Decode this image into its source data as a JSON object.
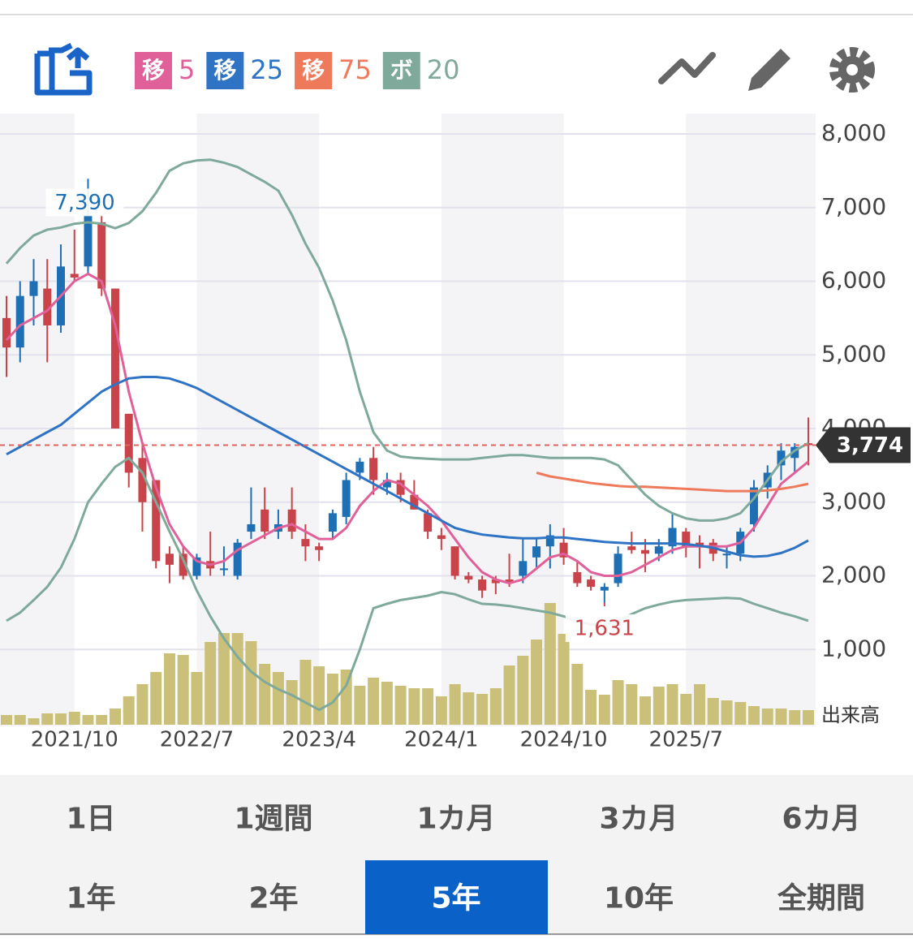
{
  "chart_data": {
    "type": "candlestick",
    "indicators": [
      {
        "badge": "移",
        "period": 5,
        "color": "#e0609a"
      },
      {
        "badge": "移",
        "period": 25,
        "color": "#2f74c4"
      },
      {
        "badge": "移",
        "period": 75,
        "color": "#ee7a5b"
      },
      {
        "badge": "ボ",
        "period": 20,
        "color": "#7fa99b"
      }
    ],
    "categories": [
      null,
      null,
      null,
      null,
      null,
      "2021/10",
      null,
      null,
      null,
      null,
      null,
      null,
      null,
      null,
      "2022/7",
      null,
      null,
      null,
      null,
      null,
      null,
      null,
      null,
      "2023/4",
      null,
      null,
      null,
      null,
      null,
      null,
      null,
      null,
      "2024/1",
      null,
      null,
      null,
      null,
      null,
      null,
      null,
      null,
      "2024/10",
      null,
      null,
      null,
      null,
      null,
      null,
      null,
      null,
      "2025/7",
      null,
      null,
      null,
      null,
      null,
      null,
      null,
      null,
      null
    ],
    "open": [
      5500,
      5100,
      5800,
      5900,
      5400,
      6100,
      6200,
      6800,
      5900,
      4200,
      3600,
      3300,
      2300,
      2300,
      2000,
      2200,
      2100,
      2000,
      2600,
      2900,
      2600,
      2900,
      2500,
      2400,
      2600,
      2800,
      3400,
      3600,
      3200,
      3300,
      3100,
      2850,
      2550,
      2400,
      2000,
      1950,
      1950,
      1950,
      2000,
      2250,
      2400,
      2450,
      2050,
      1950,
      1800,
      1900,
      2400,
      2350,
      2300,
      2400,
      2600,
      2450,
      2450,
      2300,
      2300,
      2700,
      3200,
      3500,
      3600,
      3800
    ],
    "high": [
      5800,
      6000,
      6300,
      6300,
      6500,
      6700,
      7390,
      6900,
      5900,
      4200,
      3800,
      3300,
      2400,
      2400,
      2300,
      2600,
      2400,
      2500,
      3200,
      3200,
      2900,
      3200,
      2700,
      2450,
      2900,
      3400,
      3600,
      3750,
      3400,
      3400,
      3300,
      2900,
      2650,
      2400,
      2050,
      2000,
      2000,
      2300,
      2500,
      2500,
      2700,
      2650,
      2200,
      2000,
      1900,
      2400,
      2600,
      2500,
      2500,
      2850,
      2650,
      2550,
      2500,
      2400,
      2650,
      3300,
      3500,
      3800,
      3800,
      4150
    ],
    "low": [
      4700,
      4900,
      5400,
      4900,
      5300,
      6000,
      6100,
      5800,
      4000,
      3200,
      2600,
      2100,
      1900,
      1950,
      1950,
      2000,
      2000,
      1950,
      2500,
      2500,
      2500,
      2500,
      2200,
      2200,
      2500,
      2700,
      3300,
      3100,
      3100,
      3000,
      2900,
      2500,
      2350,
      1950,
      1900,
      1700,
      1750,
      1850,
      1900,
      2100,
      2100,
      2150,
      1850,
      1800,
      1631,
      1850,
      2300,
      2050,
      2200,
      2300,
      2250,
      2100,
      2200,
      2100,
      2200,
      2600,
      3050,
      3300,
      3400,
      3500
    ],
    "close": [
      5100,
      5800,
      6000,
      5400,
      6200,
      6050,
      6900,
      5900,
      4000,
      3400,
      3000,
      2200,
      2150,
      2000,
      2250,
      2100,
      2100,
      2450,
      2700,
      2600,
      2700,
      2600,
      2400,
      2350,
      2850,
      3300,
      3550,
      3300,
      3300,
      3100,
      2900,
      2600,
      2500,
      2000,
      1950,
      1800,
      1900,
      1900,
      2200,
      2400,
      2550,
      2250,
      1900,
      1850,
      1850,
      2300,
      2350,
      2300,
      2400,
      2650,
      2400,
      2400,
      2300,
      2300,
      2600,
      3200,
      3400,
      3700,
      3750,
      3774
    ],
    "volume": [
      12,
      12,
      8,
      14,
      14,
      16,
      12,
      12,
      20,
      35,
      50,
      65,
      88,
      86,
      65,
      102,
      113,
      113,
      103,
      75,
      65,
      55,
      80,
      72,
      63,
      68,
      48,
      58,
      53,
      48,
      45,
      45,
      35,
      50,
      40,
      38,
      45,
      73,
      85,
      105,
      150,
      112,
      75,
      43,
      37,
      55,
      50,
      35,
      47,
      50,
      38,
      50,
      33,
      30,
      28,
      23,
      20,
      20,
      18,
      18
    ],
    "volume_label": "出来高",
    "lines": [
      {
        "values": [
          5200,
          5400,
          5500,
          5600,
          5800,
          6000,
          6100,
          6000,
          5400,
          4500,
          3800,
          3200,
          2700,
          2400,
          2200,
          2150,
          2200,
          2350,
          2450,
          2550,
          2650,
          2700,
          2600,
          2500,
          2500,
          2650,
          2950,
          3150,
          3300,
          3250,
          3100,
          2950,
          2750,
          2500,
          2250,
          2050,
          1950,
          1900,
          1950,
          2100,
          2250,
          2300,
          2200,
          2050,
          2000,
          2000,
          2050,
          2150,
          2250,
          2350,
          2400,
          2400,
          2400,
          2400,
          2450,
          2650,
          2950,
          3250,
          3400,
          3550
        ],
        "color": "#e0609a"
      },
      {
        "values": [
          3650,
          3750,
          3850,
          3950,
          4050,
          4200,
          4350,
          4500,
          4600,
          4680,
          4700,
          4700,
          4680,
          4620,
          4550,
          4450,
          4350,
          4250,
          4150,
          4050,
          3950,
          3850,
          3750,
          3650,
          3550,
          3450,
          3350,
          3250,
          3150,
          3050,
          2950,
          2850,
          2750,
          2650,
          2600,
          2560,
          2540,
          2520,
          2510,
          2510,
          2520,
          2520,
          2500,
          2480,
          2460,
          2450,
          2440,
          2440,
          2440,
          2440,
          2430,
          2410,
          2380,
          2330,
          2280,
          2260,
          2270,
          2310,
          2380,
          2480
        ],
        "color": "#2f74c4"
      },
      {
        "values": [
          null,
          null,
          null,
          null,
          null,
          null,
          null,
          null,
          null,
          null,
          null,
          null,
          null,
          null,
          null,
          null,
          null,
          null,
          null,
          null,
          null,
          null,
          null,
          null,
          null,
          null,
          null,
          null,
          null,
          null,
          null,
          null,
          null,
          null,
          null,
          null,
          null,
          null,
          null,
          3400,
          3350,
          3320,
          3290,
          3260,
          3240,
          3220,
          3210,
          3210,
          3200,
          3190,
          3180,
          3170,
          3160,
          3150,
          3150,
          3150,
          3160,
          3180,
          3210,
          3250
        ],
        "color": "#ee7a5b"
      },
      {
        "values": [
          6240,
          6450,
          6620,
          6700,
          6730,
          6780,
          6800,
          6780,
          6720,
          6790,
          6950,
          7200,
          7500,
          7600,
          7640,
          7650,
          7610,
          7550,
          7450,
          7350,
          7230,
          6900,
          6510,
          6180,
          5740,
          5200,
          4500,
          3950,
          3700,
          3620,
          3600,
          3590,
          3580,
          3580,
          3580,
          3600,
          3620,
          3640,
          3640,
          3620,
          3600,
          3600,
          3600,
          3600,
          3580,
          3500,
          3300,
          3100,
          2950,
          2850,
          2780,
          2750,
          2750,
          2780,
          2850,
          3050,
          3300,
          3550,
          3700,
          3800
        ],
        "color": "#7fa99b"
      },
      {
        "values": [
          1390,
          1500,
          1670,
          1850,
          2110,
          2500,
          3000,
          3250,
          3480,
          3600,
          3400,
          3000,
          2600,
          2220,
          1800,
          1450,
          1150,
          900,
          700,
          560,
          460,
          380,
          280,
          180,
          280,
          510,
          1000,
          1560,
          1620,
          1670,
          1700,
          1730,
          1780,
          1750,
          1680,
          1620,
          1610,
          1590,
          1560,
          1530,
          1500,
          1450,
          1380,
          1340,
          1320,
          1390,
          1480,
          1560,
          1610,
          1650,
          1670,
          1680,
          1690,
          1700,
          1690,
          1620,
          1560,
          1500,
          1450,
          1390
        ],
        "color": "#7fa99b"
      }
    ],
    "up_color": "#1f6fb5",
    "down_color": "#c8444a",
    "volume_color": "#cbc07a",
    "ylim": [
      0,
      8000
    ],
    "yticks": [
      {
        "value": 1000,
        "label": "1,000"
      },
      {
        "value": 2000,
        "label": "2,000"
      },
      {
        "value": 3000,
        "label": "3,000"
      },
      {
        "value": 4000,
        "label": "4,000"
      },
      {
        "value": 5000,
        "label": "5,000"
      },
      {
        "value": 6000,
        "label": "6,000"
      },
      {
        "value": 7000,
        "label": "7,000"
      },
      {
        "value": 8000,
        "label": "8,000"
      }
    ],
    "high_mark": {
      "value": 7390,
      "label": "7,390",
      "index": 6
    },
    "low_mark": {
      "value": 1631,
      "label": "1,631",
      "index": 44
    },
    "last_price": {
      "value": 3774,
      "label": "3,774"
    },
    "grid": true
  },
  "tabs": [
    [
      {
        "label": "1日"
      },
      {
        "label": "1週間"
      },
      {
        "label": "1カ月"
      },
      {
        "label": "3カ月"
      },
      {
        "label": "6カ月"
      }
    ],
    [
      {
        "label": "1年"
      },
      {
        "label": "2年"
      },
      {
        "label": "5年",
        "active": true
      },
      {
        "label": "10年"
      },
      {
        "label": "全期間"
      }
    ]
  ]
}
